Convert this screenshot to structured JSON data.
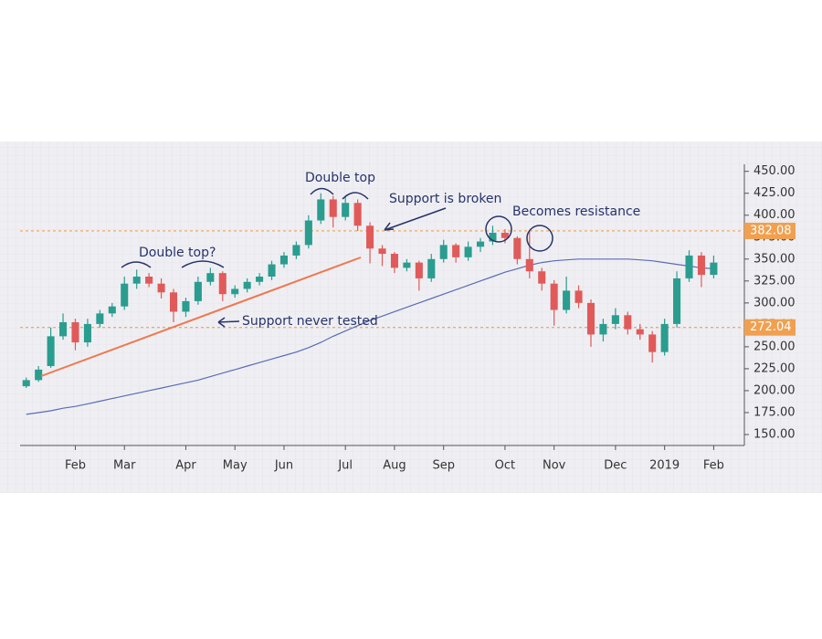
{
  "chart_data": {
    "type": "candlestick",
    "categories": [
      null,
      null,
      null,
      null,
      "Feb",
      null,
      null,
      null,
      "Mar",
      null,
      null,
      null,
      null,
      "Apr",
      null,
      null,
      null,
      "May",
      null,
      null,
      null,
      "Jun",
      null,
      null,
      null,
      null,
      "Jul",
      null,
      null,
      null,
      "Aug",
      null,
      null,
      null,
      "Sep",
      null,
      null,
      null,
      null,
      "Oct",
      null,
      null,
      null,
      "Nov",
      null,
      null,
      null,
      null,
      "Dec",
      null,
      null,
      null,
      "2019",
      null,
      null,
      null,
      "Feb",
      null,
      null
    ],
    "open": [
      205,
      212,
      228,
      262,
      278,
      255,
      276,
      288,
      296,
      322,
      330,
      322,
      312,
      290,
      302,
      324,
      334,
      310,
      316,
      324,
      330,
      344,
      354,
      366,
      394,
      418,
      398,
      414,
      388,
      362,
      356,
      340,
      346,
      328,
      350,
      366,
      352,
      364,
      370,
      380,
      374,
      350,
      336,
      322,
      292,
      314,
      300,
      264,
      276,
      286,
      270,
      264,
      244,
      276,
      328,
      354,
      332,
      null,
      null
    ],
    "high": [
      215,
      228,
      272,
      288,
      282,
      282,
      292,
      300,
      330,
      338,
      334,
      328,
      316,
      306,
      330,
      340,
      336,
      320,
      328,
      334,
      348,
      358,
      370,
      400,
      425,
      422,
      422,
      418,
      392,
      366,
      358,
      350,
      348,
      356,
      372,
      368,
      370,
      374,
      388,
      384,
      376,
      382,
      340,
      326,
      330,
      320,
      304,
      282,
      294,
      290,
      276,
      268,
      282,
      336,
      360,
      358,
      354,
      null,
      null
    ],
    "low": [
      203,
      210,
      226,
      258,
      246,
      250,
      272,
      284,
      292,
      316,
      318,
      305,
      278,
      284,
      298,
      320,
      302,
      306,
      312,
      320,
      326,
      340,
      350,
      362,
      390,
      386,
      394,
      382,
      345,
      342,
      334,
      336,
      314,
      324,
      346,
      346,
      348,
      358,
      366,
      368,
      344,
      328,
      314,
      274,
      288,
      294,
      250,
      256,
      270,
      264,
      258,
      232,
      240,
      272,
      324,
      318,
      328,
      null,
      null
    ],
    "close": [
      212,
      224,
      262,
      278,
      255,
      276,
      288,
      296,
      322,
      330,
      322,
      312,
      290,
      302,
      324,
      334,
      310,
      316,
      324,
      330,
      344,
      354,
      366,
      394,
      418,
      398,
      414,
      388,
      362,
      356,
      340,
      346,
      328,
      350,
      366,
      352,
      364,
      370,
      380,
      374,
      350,
      336,
      322,
      292,
      314,
      300,
      264,
      276,
      286,
      270,
      264,
      244,
      276,
      328,
      354,
      332,
      346,
      null,
      null
    ],
    "up_color": "#2a9d8f",
    "down_color": "#e05a5a",
    "moving_average": {
      "color": "#5b6bb5",
      "values": [
        173,
        175,
        177,
        180,
        182,
        185,
        188,
        191,
        194,
        197,
        200,
        203,
        206,
        209,
        212,
        216,
        220,
        224,
        228,
        232,
        236,
        240,
        244,
        249,
        255,
        262,
        268,
        274,
        280,
        285,
        290,
        295,
        300,
        305,
        310,
        315,
        320,
        325,
        330,
        335,
        339,
        343,
        346,
        348,
        349,
        350,
        350,
        350,
        350,
        350,
        349,
        348,
        346,
        344,
        342,
        340,
        339,
        null,
        null
      ]
    },
    "ylim": [
      137.5,
      458
    ],
    "yticks": [
      {
        "value": 150,
        "label": "150.00"
      },
      {
        "value": 175,
        "label": "175.00"
      },
      {
        "value": 200,
        "label": "200.00"
      },
      {
        "value": 225,
        "label": "225.00"
      },
      {
        "value": 250,
        "label": "250.00"
      },
      {
        "value": 275,
        "label": "275.00"
      },
      {
        "value": 300,
        "label": "300.00"
      },
      {
        "value": 325,
        "label": "325.00"
      },
      {
        "value": 350,
        "label": "350.00"
      },
      {
        "value": 375,
        "label": "375.00"
      },
      {
        "value": 400,
        "label": "400.00"
      },
      {
        "value": 425,
        "label": "425.00"
      },
      {
        "value": 450,
        "label": "450.00"
      }
    ],
    "levels": [
      {
        "value": 382.08,
        "label": "382.08"
      },
      {
        "value": 272.04,
        "label": "272.04"
      }
    ],
    "level_color": "#f0a050",
    "annotations": [
      "Double top?",
      "Double top",
      "Support is broken",
      "Becomes resistance",
      "Support never tested"
    ]
  }
}
